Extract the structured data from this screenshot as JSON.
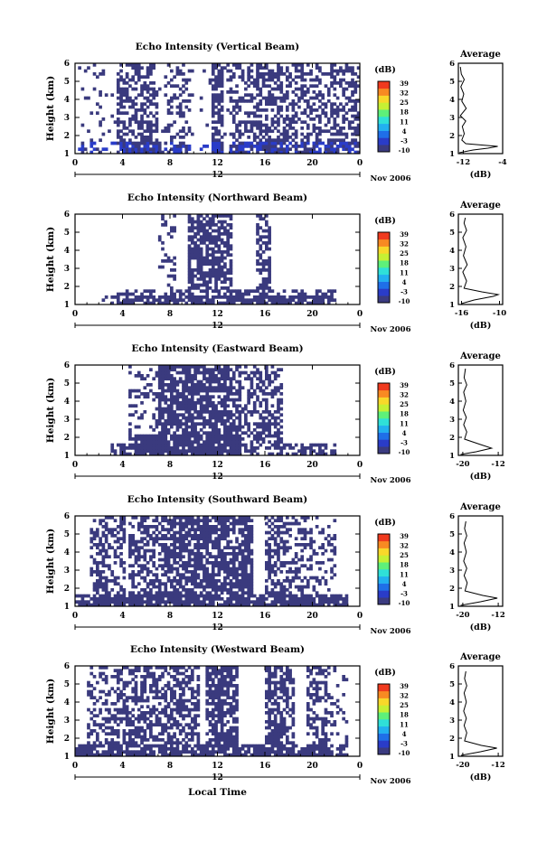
{
  "figure": {
    "xlabel": "Local Time",
    "month_label": "Nov 2006",
    "date_label": "12",
    "avg_title": "Average",
    "avg_xlabel": "(dB)",
    "colorbar_unit": "(dB)",
    "colorbar_ticks": [
      "39",
      "32",
      "25",
      "18",
      "11",
      "4",
      "-3",
      "-10"
    ],
    "colormap": [
      "#3b3b80",
      "#2a3cc8",
      "#1f6fe8",
      "#22b0f0",
      "#2fe0d8",
      "#5ef07a",
      "#c6f034",
      "#f8d82a",
      "#f88a22",
      "#f03a1e"
    ],
    "cell_color": "#3a3a7e"
  },
  "chart_data": [
    {
      "type": "heatmap",
      "title": "Echo Intensity (Vertical Beam)",
      "ylabel": "Height (km)",
      "xlim": [
        0,
        24
      ],
      "ylim": [
        1,
        6
      ],
      "xticks": [
        "0",
        "4",
        "8",
        "12",
        "16",
        "20",
        "0"
      ],
      "yticks": [
        "1",
        "2",
        "3",
        "4",
        "5",
        "6"
      ],
      "value_range_db": [
        -10,
        39
      ],
      "profile": {
        "xlim": [
          -13,
          -4
        ],
        "xticks": [
          "-12",
          "-4"
        ],
        "points": [
          [
            -12.8,
            1.05
          ],
          [
            -10,
            1.2
          ],
          [
            -7,
            1.3
          ],
          [
            -5,
            1.4
          ],
          [
            -11.5,
            1.55
          ],
          [
            -12.3,
            1.75
          ],
          [
            -11.8,
            2.1
          ],
          [
            -12.2,
            2.5
          ],
          [
            -11.5,
            2.8
          ],
          [
            -12.6,
            3.1
          ],
          [
            -11.4,
            3.5
          ],
          [
            -12.3,
            3.9
          ],
          [
            -11.9,
            4.3
          ],
          [
            -12.5,
            4.7
          ],
          [
            -11.8,
            5.1
          ],
          [
            -12.4,
            5.4
          ],
          [
            -12.6,
            5.8
          ]
        ]
      }
    },
    {
      "type": "heatmap",
      "title": "Echo Intensity (Northward Beam)",
      "ylabel": "Height (km)",
      "xlim": [
        0,
        24
      ],
      "ylim": [
        1,
        6
      ],
      "xticks": [
        "0",
        "4",
        "8",
        "12",
        "16",
        "20",
        "0"
      ],
      "yticks": [
        "1",
        "2",
        "3",
        "4",
        "5",
        "6"
      ],
      "value_range_db": [
        -10,
        39
      ],
      "profile": {
        "xlim": [
          -16.5,
          -9.5
        ],
        "xticks": [
          "-16",
          "-10"
        ],
        "points": [
          [
            -16,
            1.05
          ],
          [
            -14,
            1.25
          ],
          [
            -11,
            1.45
          ],
          [
            -10.2,
            1.55
          ],
          [
            -12.8,
            1.7
          ],
          [
            -15.6,
            1.9
          ],
          [
            -15.2,
            2.3
          ],
          [
            -15.8,
            2.8
          ],
          [
            -15.1,
            3.2
          ],
          [
            -15.7,
            3.7
          ],
          [
            -15.3,
            4.2
          ],
          [
            -15.8,
            4.7
          ],
          [
            -15.2,
            5.1
          ],
          [
            -15.6,
            5.5
          ],
          [
            -15.4,
            5.8
          ]
        ]
      }
    },
    {
      "type": "heatmap",
      "title": "Echo Intensity (Eastward Beam)",
      "ylabel": "Height (km)",
      "xlim": [
        0,
        24
      ],
      "ylim": [
        1,
        6
      ],
      "xticks": [
        "0",
        "4",
        "8",
        "12",
        "16",
        "20",
        "0"
      ],
      "yticks": [
        "1",
        "2",
        "3",
        "4",
        "5",
        "6"
      ],
      "value_range_db": [
        -10,
        39
      ],
      "profile": {
        "xlim": [
          -21,
          -11
        ],
        "xticks": [
          "-20",
          "-12"
        ],
        "points": [
          [
            -20.5,
            1.05
          ],
          [
            -17,
            1.2
          ],
          [
            -13.5,
            1.4
          ],
          [
            -16,
            1.6
          ],
          [
            -19.6,
            1.9
          ],
          [
            -19.1,
            2.3
          ],
          [
            -19.8,
            2.7
          ],
          [
            -19.2,
            3.1
          ],
          [
            -19.9,
            3.5
          ],
          [
            -19.3,
            4
          ],
          [
            -19.8,
            4.5
          ],
          [
            -19.1,
            4.9
          ],
          [
            -19.7,
            5.3
          ],
          [
            -19.4,
            5.8
          ]
        ]
      }
    },
    {
      "type": "heatmap",
      "title": "Echo Intensity (Southward Beam)",
      "ylabel": "Height (km)",
      "xlim": [
        0,
        24
      ],
      "ylim": [
        1,
        6
      ],
      "xticks": [
        "0",
        "4",
        "8",
        "12",
        "16",
        "20",
        "0"
      ],
      "yticks": [
        "1",
        "2",
        "3",
        "4",
        "5",
        "6"
      ],
      "value_range_db": [
        -10,
        39
      ],
      "profile": {
        "xlim": [
          -21,
          -11
        ],
        "xticks": [
          "-20",
          "-12"
        ],
        "points": [
          [
            -20.5,
            1.05
          ],
          [
            -16,
            1.25
          ],
          [
            -12.2,
            1.45
          ],
          [
            -15.5,
            1.6
          ],
          [
            -19.5,
            1.85
          ],
          [
            -19,
            2.3
          ],
          [
            -19.7,
            2.7
          ],
          [
            -19.1,
            3.1
          ],
          [
            -19.8,
            3.5
          ],
          [
            -19.2,
            4
          ],
          [
            -19.7,
            4.5
          ],
          [
            -19.1,
            4.9
          ],
          [
            -19.6,
            5.3
          ],
          [
            -19.3,
            5.7
          ]
        ]
      }
    },
    {
      "type": "heatmap",
      "title": "Echo Intensity (Westward Beam)",
      "ylabel": "Height (km)",
      "xlim": [
        0,
        24
      ],
      "ylim": [
        1,
        6
      ],
      "xticks": [
        "0",
        "4",
        "8",
        "12",
        "16",
        "20",
        "0"
      ],
      "yticks": [
        "1",
        "2",
        "3",
        "4",
        "5",
        "6"
      ],
      "value_range_db": [
        -10,
        39
      ],
      "profile": {
        "xlim": [
          -21,
          -11
        ],
        "xticks": [
          "-20",
          "-12"
        ],
        "points": [
          [
            -20.4,
            1.05
          ],
          [
            -16,
            1.25
          ],
          [
            -12.3,
            1.45
          ],
          [
            -15.8,
            1.6
          ],
          [
            -19.6,
            1.85
          ],
          [
            -19.1,
            2.3
          ],
          [
            -19.7,
            2.7
          ],
          [
            -19.2,
            3.1
          ],
          [
            -19.8,
            3.5
          ],
          [
            -19.2,
            4
          ],
          [
            -19.7,
            4.5
          ],
          [
            -19.1,
            4.9
          ],
          [
            -19.6,
            5.3
          ],
          [
            -19.3,
            5.7
          ]
        ]
      }
    }
  ]
}
